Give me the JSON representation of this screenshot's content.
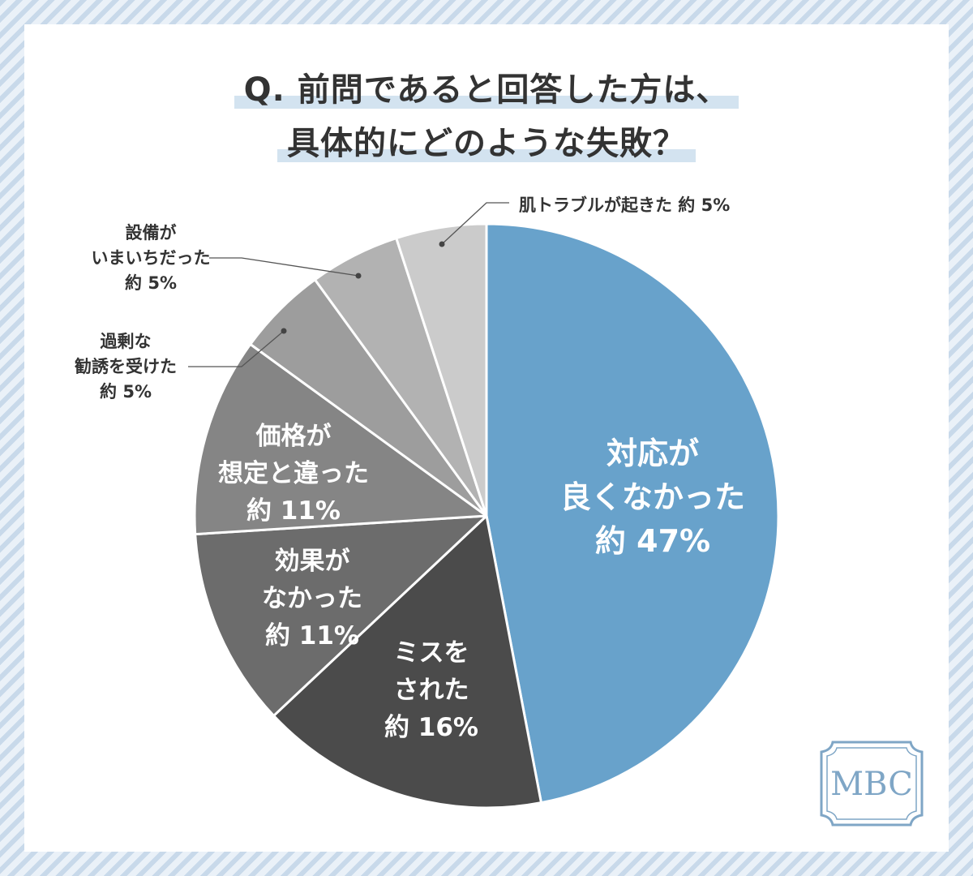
{
  "title": {
    "line1": "Q. 前問であると回答した方は、",
    "line2": "具体的にどのような失敗？"
  },
  "chart_data": {
    "type": "pie",
    "start_angle_deg": 0,
    "direction": "clockwise",
    "slices": [
      {
        "label_lines": [
          "対応が",
          "良くなかった"
        ],
        "value_text": "約 47%",
        "value": 47,
        "color": "#68a2cb",
        "label_placement": "inside",
        "text_color": "#ffffff"
      },
      {
        "label_lines": [
          "ミスを",
          "された"
        ],
        "value_text": "約 16%",
        "value": 16,
        "color": "#4b4b4b",
        "label_placement": "inside",
        "text_color": "#ffffff"
      },
      {
        "label_lines": [
          "効果が",
          "なかった"
        ],
        "value_text": "約 11%",
        "value": 11,
        "color": "#6c6c6c",
        "label_placement": "inside",
        "text_color": "#ffffff"
      },
      {
        "label_lines": [
          "価格が",
          "想定と違った"
        ],
        "value_text": "約 11%",
        "value": 11,
        "color": "#858585",
        "label_placement": "inside",
        "text_color": "#ffffff"
      },
      {
        "label_lines": [
          "過剰な",
          "勧誘を受けた"
        ],
        "value_text": "約 5%",
        "value": 5,
        "color": "#9d9d9d",
        "label_placement": "outside",
        "text_color": "#333333"
      },
      {
        "label_lines": [
          "設備が",
          "いまいちだった"
        ],
        "value_text": "約 5%",
        "value": 5,
        "color": "#b2b2b2",
        "label_placement": "outside",
        "text_color": "#333333"
      },
      {
        "label_lines": [
          "肌トラブルが起きた"
        ],
        "value_text": "約 5%",
        "value": 5,
        "color": "#cbcbcb",
        "label_placement": "outside",
        "text_color": "#333333"
      }
    ]
  },
  "badge": {
    "text": "MBC",
    "color": "#7fa6c6"
  }
}
